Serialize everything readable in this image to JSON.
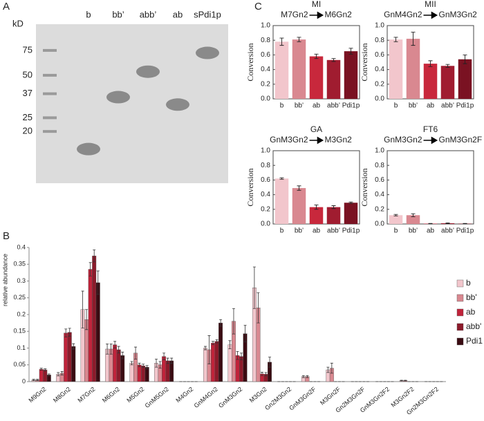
{
  "chart_data": [
    {
      "type": "gel",
      "panel": "A",
      "ylabel": "kD",
      "categories": [
        "b",
        "bb’",
        "abb’",
        "ab",
        "sPdi1p"
      ],
      "values": [
        15,
        35,
        53,
        31,
        72
      ],
      "log": true,
      "ylim": [
        8.6,
        115
      ],
      "yticks": [
        75,
        50,
        37,
        25,
        20
      ],
      "color": "#8a8a8a"
    },
    {
      "type": "grouped-bar",
      "panel": "B",
      "ylabel": "relative abundance",
      "categories": [
        "M9Gn2",
        "M8Gn2",
        "M7Gn2",
        "M6Gn2",
        "M5Gn2",
        "GnM5Gn2",
        "M4Gn2",
        "GnM4Gn2",
        "GnM3Gn2",
        "M3Gn2",
        "Gn2M3Gn2",
        "GnM3Gn2F",
        "M3Gn2F",
        "Gn2M3Gn2F",
        "GnM3Gn2F2",
        "M3Gn2F2",
        "Gn2M3Gn2F2"
      ],
      "series": [
        {
          "name": "b",
          "color": "#f2c6cc",
          "values": [
            0.005,
            0.022,
            0.215,
            0.097,
            0.055,
            0.055,
            0,
            0.1,
            0.11,
            0.28,
            0,
            0.015,
            0.035,
            0,
            0,
            0.003,
            0
          ],
          "errors": [
            0.002,
            0.005,
            0.055,
            0.015,
            0.005,
            0.012,
            0,
            0.005,
            0.012,
            0.062,
            0,
            0.003,
            0.008,
            0,
            0,
            0.001,
            0
          ]
        },
        {
          "name": "bb'",
          "color": "#d98890",
          "values": [
            0.005,
            0.025,
            0.185,
            0.097,
            0.085,
            0.05,
            0,
            0.095,
            0.18,
            0.22,
            0,
            0.015,
            0.04,
            0,
            0,
            0.003,
            0
          ],
          "errors": [
            0.002,
            0.005,
            0.03,
            0.015,
            0.018,
            0.01,
            0,
            0.042,
            0.038,
            0.045,
            0,
            0.003,
            0.015,
            0,
            0,
            0.001,
            0
          ]
        },
        {
          "name": "ab",
          "color": "#c0233a",
          "values": [
            0.037,
            0.145,
            0.335,
            0.11,
            0.05,
            0.075,
            0,
            0.115,
            0.078,
            0.023,
            0,
            0,
            0,
            0,
            0,
            0,
            0
          ],
          "errors": [
            0.003,
            0.012,
            0.02,
            0.01,
            0.005,
            0.01,
            0,
            0.005,
            0.012,
            0.005,
            0,
            0,
            0,
            0,
            0,
            0,
            0
          ]
        },
        {
          "name": "abb'",
          "color": "#8c1b2b",
          "values": [
            0.035,
            0.147,
            0.375,
            0.095,
            0.047,
            0.062,
            0,
            0.12,
            0.075,
            0.022,
            0,
            0,
            0,
            0,
            0,
            0,
            0
          ],
          "errors": [
            0.003,
            0.012,
            0.018,
            0.01,
            0.005,
            0.008,
            0,
            0.005,
            0.01,
            0.005,
            0,
            0,
            0,
            0,
            0,
            0,
            0
          ]
        },
        {
          "name": "Pdi1",
          "color": "#3a0b12",
          "values": [
            0.02,
            0.105,
            0.295,
            0.078,
            0.043,
            0.062,
            0,
            0.175,
            0.143,
            0.058,
            0,
            0,
            0,
            0,
            0,
            0,
            0
          ],
          "errors": [
            0.003,
            0.008,
            0.035,
            0.01,
            0.005,
            0.008,
            0,
            0.01,
            0.025,
            0.015,
            0,
            0,
            0,
            0,
            0,
            0,
            0
          ]
        }
      ],
      "ylim": [
        0,
        0.4
      ],
      "yticks": [
        0,
        0.05,
        0.1,
        0.15,
        0.2,
        0.25,
        0.3,
        0.35,
        0.4
      ],
      "legend": "right"
    },
    {
      "type": "bar",
      "panel": "C",
      "title": "MI",
      "substrate": "M7Gn2",
      "product": "M6Gn2",
      "ylabel": "Conversion",
      "categories": [
        "b",
        "bb’",
        "ab",
        "abb’",
        "Pdi1p"
      ],
      "values": [
        0.78,
        0.81,
        0.58,
        0.53,
        0.65
      ],
      "errors": [
        0.05,
        0.03,
        0.03,
        0.02,
        0.04
      ],
      "colors": [
        "#f2c6cc",
        "#d98890",
        "#c8283c",
        "#a01c30",
        "#7a1222"
      ],
      "ylim": [
        0,
        1
      ],
      "yticks": [
        {
          "value": 0,
          "label": "0.0"
        },
        {
          "value": 0.2,
          "label": "0.2"
        },
        {
          "value": 0.4,
          "label": "0.4"
        },
        {
          "value": 0.6,
          "label": "0.6"
        },
        {
          "value": 0.8,
          "label": "0.8"
        },
        {
          "value": 1,
          "label": "1.0"
        }
      ]
    },
    {
      "type": "bar",
      "title": "MII",
      "substrate": "GnM4Gn2",
      "product": "GnM3Gn2",
      "ylabel": "Conversion",
      "categories": [
        "b",
        "bb’",
        "ab",
        "abb’",
        "Pdi1p"
      ],
      "values": [
        0.81,
        0.82,
        0.48,
        0.45,
        0.54
      ],
      "errors": [
        0.03,
        0.09,
        0.04,
        0.02,
        0.06
      ],
      "colors": [
        "#f2c6cc",
        "#d98890",
        "#c8283c",
        "#a01c30",
        "#7a1222"
      ],
      "ylim": [
        0,
        1
      ],
      "yticks": [
        {
          "value": 0,
          "label": "0.0"
        },
        {
          "value": 0.2,
          "label": "0.2"
        },
        {
          "value": 0.4,
          "label": "0.4"
        },
        {
          "value": 0.6,
          "label": "0.6"
        },
        {
          "value": 0.8,
          "label": "0.8"
        },
        {
          "value": 1,
          "label": "1.0"
        }
      ]
    },
    {
      "type": "bar",
      "title": "GA",
      "substrate": "GnM3Gn2",
      "product": "M3Gn2",
      "ylabel": "Conversion",
      "categories": [
        "b",
        "bb’",
        "ab",
        "abb’",
        "Pdi1p"
      ],
      "values": [
        0.62,
        0.49,
        0.23,
        0.23,
        0.29
      ],
      "errors": [
        0.01,
        0.03,
        0.03,
        0.02,
        0.01
      ],
      "colors": [
        "#f2c6cc",
        "#d98890",
        "#c8283c",
        "#a01c30",
        "#7a1222"
      ],
      "ylim": [
        0,
        1
      ],
      "yticks": [
        {
          "value": 0,
          "label": "0.0"
        },
        {
          "value": 0.2,
          "label": "0.2"
        },
        {
          "value": 0.4,
          "label": "0.4"
        },
        {
          "value": 0.6,
          "label": "0.6"
        },
        {
          "value": 0.8,
          "label": "0.8"
        },
        {
          "value": 1,
          "label": "1.0"
        }
      ]
    },
    {
      "type": "bar",
      "title": "FT6",
      "substrate": "GnM3Gn2",
      "product": "GnM3Gn2F",
      "ylabel": "Conversion",
      "categories": [
        "b",
        "bb’",
        "ab",
        "abb’",
        "Pdi1p"
      ],
      "values": [
        0.12,
        0.12,
        0.005,
        0.01,
        0.005
      ],
      "errors": [
        0.01,
        0.02,
        0.002,
        0.005,
        0.002
      ],
      "colors": [
        "#f2c6cc",
        "#d98890",
        "#c8283c",
        "#a01c30",
        "#7a1222"
      ],
      "ylim": [
        0,
        1
      ],
      "yticks": [
        {
          "value": 0,
          "label": "0.0"
        },
        {
          "value": 0.2,
          "label": "0.2"
        },
        {
          "value": 0.4,
          "label": "0.4"
        },
        {
          "value": 0.6,
          "label": "0.6"
        },
        {
          "value": 0.8,
          "label": "0.8"
        },
        {
          "value": 1,
          "label": "1.0"
        }
      ]
    }
  ]
}
